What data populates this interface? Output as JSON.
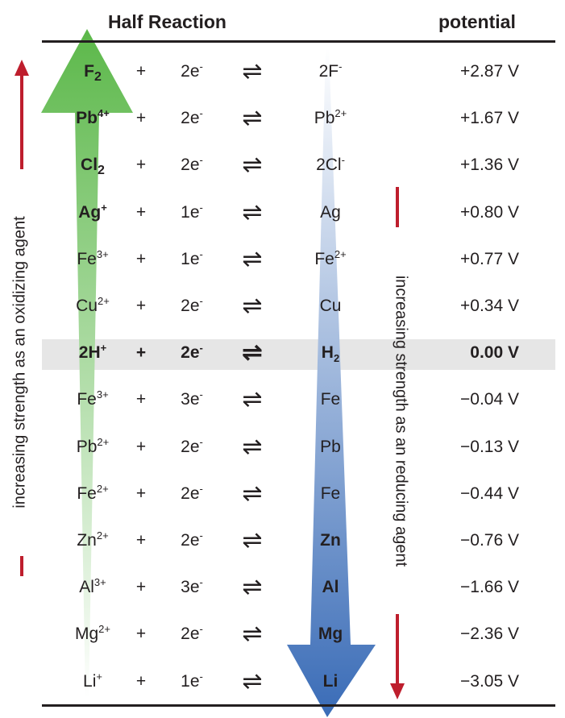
{
  "header": {
    "half_reaction": "Half Reaction",
    "potential": "potential"
  },
  "side_labels": {
    "left": "increasing strength as an oxidizing agent",
    "right": "increasing strength as an reducing agent"
  },
  "colors": {
    "oxidizing_arrow_top": "#5cb84a",
    "oxidizing_arrow_bottom": "#ffffff",
    "reducing_arrow_top": "#ffffff",
    "reducing_arrow_bottom": "#3a6cb7",
    "red_arrow": "#be1e2d",
    "highlight_row": "#e6e6e6"
  },
  "rows": [
    {
      "ox_base": "F",
      "ox_sub": "2",
      "ox_sup": "",
      "plus": "+",
      "electrons": "2e",
      "electron_sup": "-",
      "arrows": "⇌",
      "red_base": "2F",
      "red_sub": "",
      "red_sup": "-",
      "potential": "+2.87 V",
      "ox_big": true,
      "red_big": false,
      "highlight": false
    },
    {
      "ox_base": "Pb",
      "ox_sub": "",
      "ox_sup": "4+",
      "plus": "+",
      "electrons": "2e",
      "electron_sup": "-",
      "arrows": "⇌",
      "red_base": "Pb",
      "red_sub": "",
      "red_sup": "2+",
      "potential": "+1.67 V",
      "ox_big": true,
      "red_big": false,
      "highlight": false
    },
    {
      "ox_base": "Cl",
      "ox_sub": "2",
      "ox_sup": "",
      "plus": "+",
      "electrons": "2e",
      "electron_sup": "-",
      "arrows": "⇌",
      "red_base": "2Cl",
      "red_sub": "",
      "red_sup": "-",
      "potential": "+1.36 V",
      "ox_big": true,
      "red_big": false,
      "highlight": false
    },
    {
      "ox_base": "Ag",
      "ox_sub": "",
      "ox_sup": "+",
      "plus": "+",
      "electrons": "1e",
      "electron_sup": "-",
      "arrows": "⇌",
      "red_base": "Ag",
      "red_sub": "",
      "red_sup": "",
      "potential": "+0.80 V",
      "ox_big": true,
      "red_big": false,
      "highlight": false
    },
    {
      "ox_base": "Fe",
      "ox_sub": "",
      "ox_sup": "3+",
      "plus": "+",
      "electrons": "1e",
      "electron_sup": "-",
      "arrows": "⇌",
      "red_base": "Fe",
      "red_sub": "",
      "red_sup": "2+",
      "potential": "+0.77 V",
      "ox_big": false,
      "red_big": false,
      "highlight": false
    },
    {
      "ox_base": "Cu",
      "ox_sub": "",
      "ox_sup": "2+",
      "plus": "+",
      "electrons": "2e",
      "electron_sup": "-",
      "arrows": "⇌",
      "red_base": "Cu",
      "red_sub": "",
      "red_sup": "",
      "potential": "+0.34 V",
      "ox_big": false,
      "red_big": false,
      "highlight": false
    },
    {
      "ox_base": "2H",
      "ox_sub": "",
      "ox_sup": "+",
      "plus": "+",
      "electrons": "2e",
      "electron_sup": "-",
      "arrows": "⇌",
      "red_base": "H",
      "red_sub": "2",
      "red_sup": "",
      "potential": "0.00 V",
      "ox_big": false,
      "red_big": false,
      "highlight": true
    },
    {
      "ox_base": "Fe",
      "ox_sub": "",
      "ox_sup": "3+",
      "plus": "+",
      "electrons": "3e",
      "electron_sup": "-",
      "arrows": "⇌",
      "red_base": "Fe",
      "red_sub": "",
      "red_sup": "",
      "potential": "−0.04 V",
      "ox_big": false,
      "red_big": false,
      "highlight": false
    },
    {
      "ox_base": "Pb",
      "ox_sub": "",
      "ox_sup": "2+",
      "plus": "+",
      "electrons": "2e",
      "electron_sup": "-",
      "arrows": "⇌",
      "red_base": "Pb",
      "red_sub": "",
      "red_sup": "",
      "potential": "−0.13 V",
      "ox_big": false,
      "red_big": false,
      "highlight": false
    },
    {
      "ox_base": "Fe",
      "ox_sub": "",
      "ox_sup": "2+",
      "plus": "+",
      "electrons": "2e",
      "electron_sup": "-",
      "arrows": "⇌",
      "red_base": "Fe",
      "red_sub": "",
      "red_sup": "",
      "potential": "−0.44 V",
      "ox_big": false,
      "red_big": false,
      "highlight": false
    },
    {
      "ox_base": "Zn",
      "ox_sub": "",
      "ox_sup": "2+",
      "plus": "+",
      "electrons": "2e",
      "electron_sup": "-",
      "arrows": "⇌",
      "red_base": "Zn",
      "red_sub": "",
      "red_sup": "",
      "potential": "−0.76 V",
      "ox_big": false,
      "red_big": true,
      "highlight": false
    },
    {
      "ox_base": "Al",
      "ox_sub": "",
      "ox_sup": "3+",
      "plus": "+",
      "electrons": "3e",
      "electron_sup": "-",
      "arrows": "⇌",
      "red_base": "Al",
      "red_sub": "",
      "red_sup": "",
      "potential": "−1.66 V",
      "ox_big": false,
      "red_big": true,
      "highlight": false
    },
    {
      "ox_base": "Mg",
      "ox_sub": "",
      "ox_sup": "2+",
      "plus": "+",
      "electrons": "2e",
      "electron_sup": "-",
      "arrows": "⇌",
      "red_base": "Mg",
      "red_sub": "",
      "red_sup": "",
      "potential": "−2.36 V",
      "ox_big": false,
      "red_big": true,
      "highlight": false
    },
    {
      "ox_base": "Li",
      "ox_sub": "",
      "ox_sup": "+",
      "plus": "+",
      "electrons": "1e",
      "electron_sup": "-",
      "arrows": "⇌",
      "red_base": "Li",
      "red_sub": "",
      "red_sup": "",
      "potential": "−3.05 V",
      "ox_big": false,
      "red_big": true,
      "highlight": false
    }
  ]
}
